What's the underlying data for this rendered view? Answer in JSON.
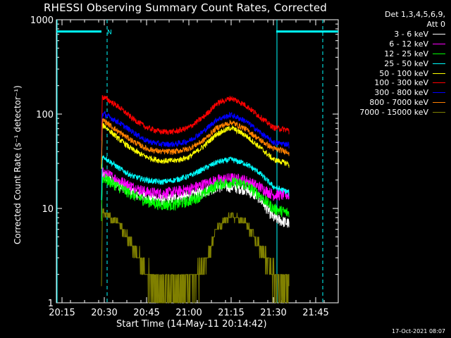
{
  "chart_data": {
    "type": "line",
    "title": "RHESSI Observing Summary Count Rates, Corrected",
    "xlabel": "Start Time (14-May-11 20:14:42)",
    "ylabel": "Corrected Count Rate (s⁻¹ detector⁻¹)",
    "yscale": "log",
    "xlim_minutes": [
      -2,
      98
    ],
    "ylim": [
      1,
      1000
    ],
    "xticks": [
      {
        "t": 0,
        "label": "20:15"
      },
      {
        "t": 15,
        "label": "20:30"
      },
      {
        "t": 30,
        "label": "20:45"
      },
      {
        "t": 45,
        "label": "21:00"
      },
      {
        "t": 60,
        "label": "21:15"
      },
      {
        "t": 75,
        "label": "21:30"
      },
      {
        "t": 90,
        "label": "21:45"
      }
    ],
    "yticks": [
      {
        "v": 1,
        "label": "1"
      },
      {
        "v": 10,
        "label": "10"
      },
      {
        "v": 100,
        "label": "100"
      },
      {
        "v": 1000,
        "label": "1000"
      }
    ],
    "data_start": 14,
    "data_end": 80.5,
    "x": [
      15,
      20,
      25,
      30,
      35,
      40,
      45,
      50,
      55,
      60,
      65,
      70,
      75,
      80
    ],
    "series": [
      {
        "name": "3 - 6 keV",
        "color": "#ffffff",
        "values": [
          22,
          18,
          15,
          13,
          12.5,
          13,
          13.5,
          15,
          17,
          17,
          16,
          13,
          8,
          7
        ]
      },
      {
        "name": "6 - 12 keV",
        "color": "#ff00ff",
        "values": [
          24,
          20,
          17,
          15,
          14.5,
          15,
          16,
          18,
          20,
          21,
          20,
          17,
          14,
          14
        ]
      },
      {
        "name": "12 - 25 keV",
        "color": "#00ff00",
        "values": [
          21,
          17,
          14,
          12,
          11,
          11,
          12,
          14,
          18,
          19,
          18,
          14,
          10,
          9
        ]
      },
      {
        "name": "25 - 50 keV",
        "color": "#00ffff",
        "values": [
          35,
          27,
          22,
          20,
          19,
          20,
          22,
          26,
          31,
          33,
          30,
          24,
          17,
          15
        ]
      },
      {
        "name": "50 - 100 keV",
        "color": "#ffff00",
        "values": [
          75,
          55,
          42,
          35,
          32,
          32,
          35,
          45,
          62,
          72,
          60,
          45,
          33,
          30
        ]
      },
      {
        "name": "100 - 300 keV",
        "color": "#ff0000",
        "values": [
          150,
          120,
          90,
          72,
          65,
          65,
          72,
          92,
          130,
          148,
          125,
          95,
          72,
          68
        ]
      },
      {
        "name": "300 - 800 keV",
        "color": "#0000ff",
        "values": [
          100,
          82,
          65,
          52,
          48,
          48,
          52,
          65,
          88,
          98,
          85,
          65,
          50,
          48
        ]
      },
      {
        "name": "800 - 7000 keV",
        "color": "#ff8000",
        "values": [
          85,
          65,
          52,
          43,
          40,
          40,
          43,
          52,
          72,
          82,
          70,
          54,
          43,
          40
        ]
      },
      {
        "name": "7000 - 15000 keV",
        "color": "#808000",
        "values": [
          9,
          7,
          4,
          2,
          1.5,
          1.5,
          1.5,
          2.5,
          6,
          8.5,
          7,
          4,
          2,
          1.5
        ]
      }
    ],
    "attenuator_bars": [
      {
        "x0": -2,
        "x1": 14,
        "value": 750,
        "label": "N"
      },
      {
        "x0": 76,
        "x1": 98,
        "value": 750,
        "label": ""
      }
    ],
    "vertical_markers_dashed": [
      16,
      92.5
    ],
    "vertical_markers_solid": [
      -2,
      76
    ],
    "legend_header": [
      "Det 1,3,4,5,6,9,",
      "Att 0"
    ]
  },
  "stamp": "17-Oct-2021 08:07",
  "colors": {
    "background": "#000000",
    "axes": "#ffffff",
    "markers": "#00ffff"
  }
}
